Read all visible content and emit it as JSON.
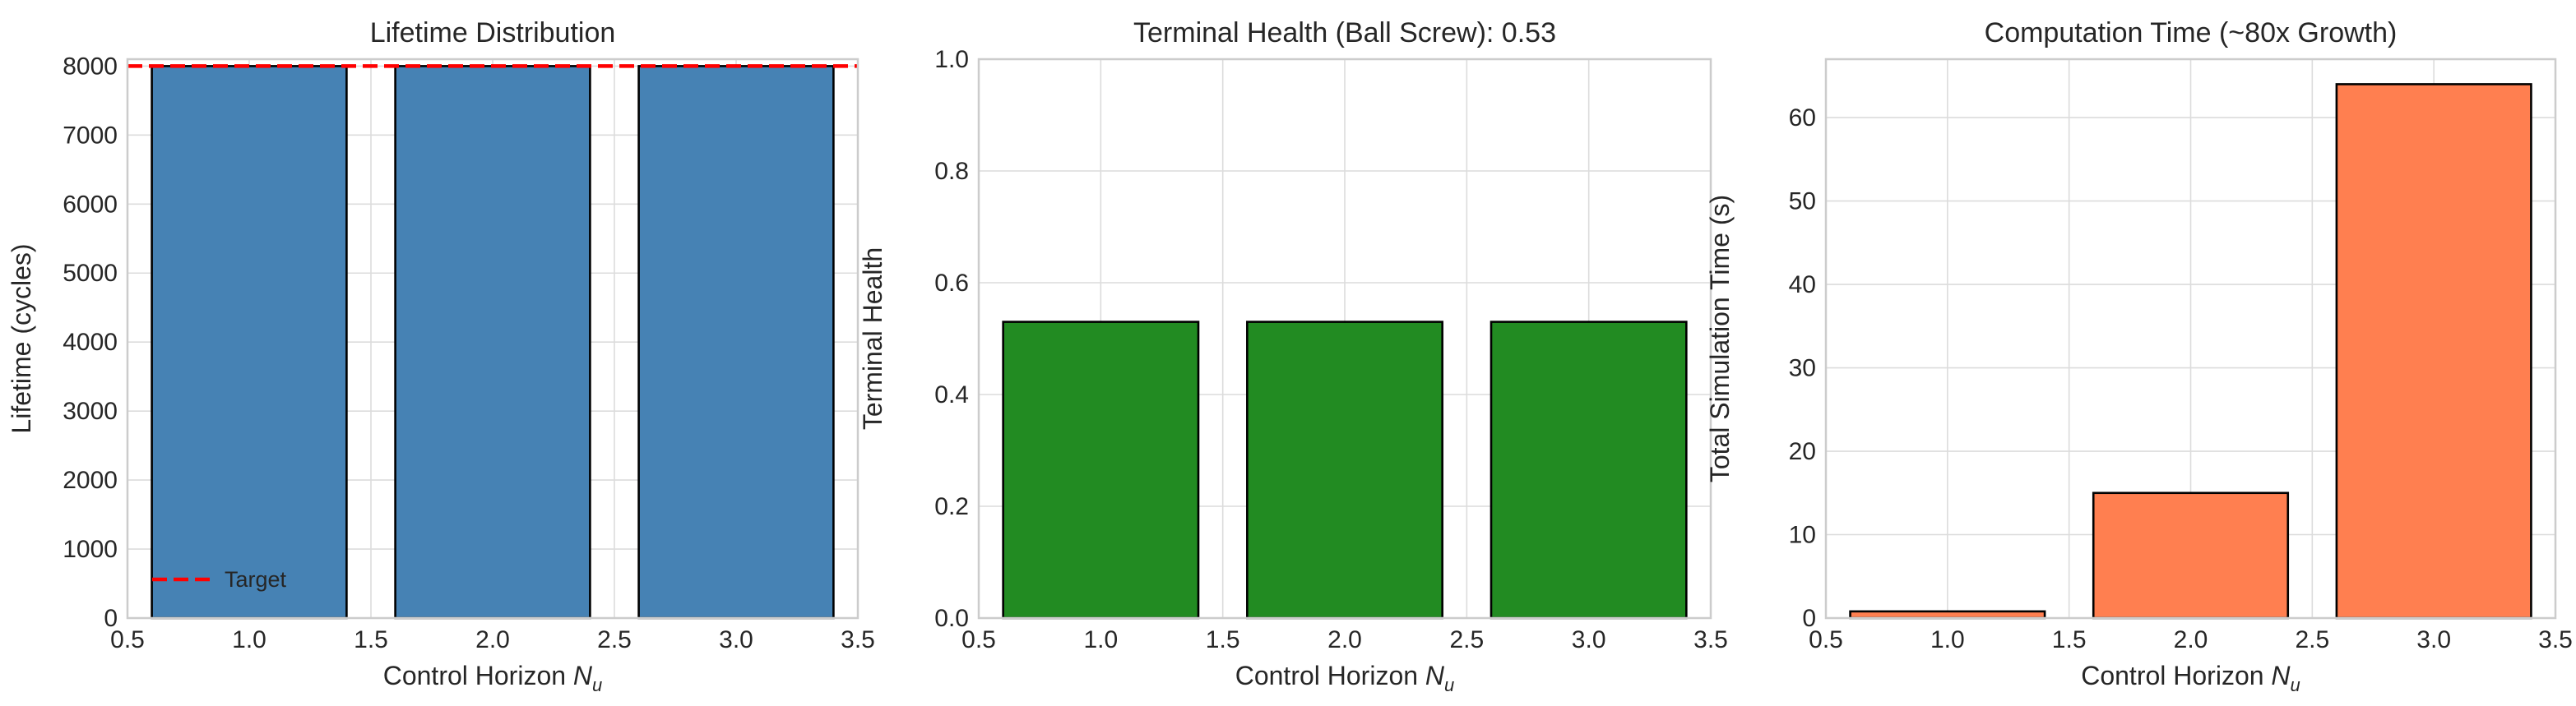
{
  "chart_data": [
    {
      "type": "bar",
      "title": "Lifetime Distribution",
      "xlabel": "Control Horizon ",
      "xlabel_var": "N",
      "xlabel_sub": "u",
      "ylabel": "Lifetime (cycles)",
      "x": [
        1.0,
        2.0,
        3.0
      ],
      "values": [
        8000,
        8000,
        8000
      ],
      "bar_width": 0.8,
      "xlim": [
        0.5,
        3.5
      ],
      "ylim": [
        0,
        8100
      ],
      "xticks": [
        0.5,
        1.0,
        1.5,
        2.0,
        2.5,
        3.0,
        3.5
      ],
      "xtick_labels": [
        "0.5",
        "1.0",
        "1.5",
        "2.0",
        "2.5",
        "3.0",
        "3.5"
      ],
      "yticks": [
        0,
        1000,
        2000,
        3000,
        4000,
        5000,
        6000,
        7000,
        8000
      ],
      "ytick_labels": [
        "0",
        "1000",
        "2000",
        "3000",
        "4000",
        "5000",
        "6000",
        "7000",
        "8000"
      ],
      "bar_color": "#4682b4",
      "reference_line": {
        "y": 8000,
        "label": "Target",
        "color": "#ff0000",
        "style": "dashed"
      },
      "legend": {
        "position": "lower-left",
        "entries": [
          "Target"
        ]
      },
      "grid": true
    },
    {
      "type": "bar",
      "title": "Terminal Health (Ball Screw): 0.53",
      "xlabel": "Control Horizon ",
      "xlabel_var": "N",
      "xlabel_sub": "u",
      "ylabel": "Terminal Health",
      "x": [
        1.0,
        2.0,
        3.0
      ],
      "values": [
        0.53,
        0.53,
        0.53
      ],
      "bar_width": 0.8,
      "xlim": [
        0.5,
        3.5
      ],
      "ylim": [
        0,
        1.0
      ],
      "xticks": [
        0.5,
        1.0,
        1.5,
        2.0,
        2.5,
        3.0,
        3.5
      ],
      "xtick_labels": [
        "0.5",
        "1.0",
        "1.5",
        "2.0",
        "2.5",
        "3.0",
        "3.5"
      ],
      "yticks": [
        0,
        0.2,
        0.4,
        0.6,
        0.8,
        1.0
      ],
      "ytick_labels": [
        "0.0",
        "0.2",
        "0.4",
        "0.6",
        "0.8",
        "1.0"
      ],
      "bar_color": "#228b22",
      "grid": true
    },
    {
      "type": "bar",
      "title": "Computation Time (~80x Growth)",
      "xlabel": "Control Horizon ",
      "xlabel_var": "N",
      "xlabel_sub": "u",
      "ylabel": "Total Simulation Time (s)",
      "x": [
        1.0,
        2.0,
        3.0
      ],
      "values": [
        0.8,
        15.0,
        64.0
      ],
      "bar_width": 0.8,
      "xlim": [
        0.5,
        3.5
      ],
      "ylim": [
        0,
        67
      ],
      "xticks": [
        0.5,
        1.0,
        1.5,
        2.0,
        2.5,
        3.0,
        3.5
      ],
      "xtick_labels": [
        "0.5",
        "1.0",
        "1.5",
        "2.0",
        "2.5",
        "3.0",
        "3.5"
      ],
      "yticks": [
        0,
        10,
        20,
        30,
        40,
        50,
        60
      ],
      "ytick_labels": [
        "0",
        "10",
        "20",
        "30",
        "40",
        "50",
        "60"
      ],
      "bar_color": "#ff7f50",
      "grid": true
    }
  ]
}
